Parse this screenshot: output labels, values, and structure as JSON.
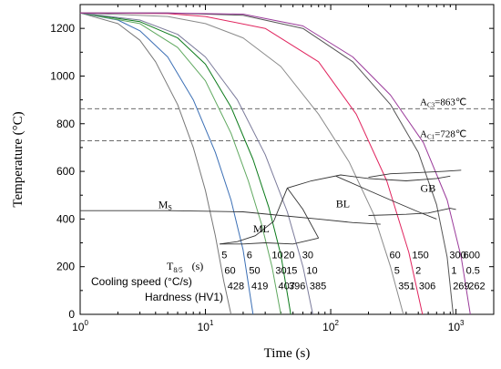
{
  "chart_data": {
    "type": "line",
    "x_scale": "log",
    "xlim": [
      1,
      2000
    ],
    "ylim": [
      0,
      1300
    ],
    "xlabel": "Time (s)",
    "ylabel": "Temperature (°C)",
    "x_ticks": [
      1,
      10,
      100,
      1000
    ],
    "x_tick_labels": [
      "10",
      "10",
      "10",
      "10"
    ],
    "x_tick_exponents": [
      "0",
      "1",
      "2",
      "3"
    ],
    "y_ticks": [
      0,
      200,
      400,
      600,
      800,
      1000,
      1200
    ],
    "y_tick_labels": [
      "0",
      "200",
      "400",
      "600",
      "800",
      "1000",
      "1200"
    ],
    "start_temperature": 1265,
    "cooling_curves": [
      {
        "color": "#777777",
        "t800_500": 5,
        "rate": 60,
        "hardness": 428,
        "x": [
          1,
          2,
          3,
          4,
          6,
          8,
          10,
          12,
          14,
          16
        ],
        "y": [
          1265,
          1220,
          1150,
          1060,
          880,
          700,
          520,
          330,
          140,
          0
        ]
      },
      {
        "color": "#3b6fb5",
        "t800_500": 6,
        "rate": 50,
        "hardness": 419,
        "x": [
          1,
          2,
          3,
          5,
          8,
          12,
          16,
          20,
          24
        ],
        "y": [
          1265,
          1235,
          1190,
          1080,
          900,
          680,
          480,
          270,
          0
        ]
      },
      {
        "color": "#5fa85f",
        "t800_500": 10,
        "rate": 30,
        "hardness": 407,
        "x": [
          1,
          3,
          6,
          10,
          16,
          22,
          28,
          34,
          40
        ],
        "y": [
          1265,
          1220,
          1120,
          980,
          760,
          560,
          380,
          200,
          0
        ]
      },
      {
        "color": "#0b7a1a",
        "t800_500": 20,
        "rate": 15,
        "hardness": 396,
        "x": [
          1,
          3,
          6,
          10,
          16,
          24,
          32,
          40,
          48
        ],
        "y": [
          1265,
          1228,
          1160,
          1050,
          870,
          650,
          450,
          250,
          0
        ]
      },
      {
        "color": "#7a7a9a",
        "t800_500": 30,
        "rate": 10,
        "hardness": 385,
        "x": [
          1,
          3,
          6,
          10,
          18,
          30,
          45,
          60,
          72
        ],
        "y": [
          1265,
          1235,
          1175,
          1080,
          900,
          670,
          430,
          200,
          0
        ]
      },
      {
        "color": "#8a8a8a",
        "t800_500": 60,
        "rate": 5,
        "hardness": 351,
        "x": [
          1,
          5,
          10,
          20,
          40,
          80,
          140,
          220,
          300,
          380
        ],
        "y": [
          1265,
          1250,
          1220,
          1160,
          1040,
          840,
          640,
          420,
          200,
          0
        ]
      },
      {
        "color": "#e0245e",
        "t800_500": 150,
        "rate": 2,
        "hardness": 306,
        "x": [
          1,
          5,
          10,
          30,
          80,
          160,
          280,
          420,
          540
        ],
        "y": [
          1265,
          1262,
          1250,
          1200,
          1060,
          840,
          560,
          260,
          0
        ]
      },
      {
        "color": "#555555",
        "t800_500": 300,
        "rate": 1,
        "hardness": 269,
        "x": [
          1,
          5,
          20,
          60,
          150,
          300,
          500,
          700,
          850,
          950
        ],
        "y": [
          1265,
          1265,
          1255,
          1200,
          1060,
          880,
          680,
          460,
          240,
          0
        ]
      },
      {
        "color": "#9a3a9a",
        "t800_500": 600,
        "rate": 0.5,
        "hardness": 262,
        "x": [
          1,
          5,
          20,
          60,
          150,
          300,
          550,
          850,
          1100,
          1300
        ],
        "y": [
          1265,
          1265,
          1260,
          1210,
          1080,
          920,
          720,
          480,
          240,
          0
        ]
      }
    ],
    "phase_boundaries": [
      {
        "x": [
          1,
          5,
          10,
          20,
          40,
          80,
          150,
          250
        ],
        "y": [
          435,
          435,
          433,
          430,
          415,
          400,
          385,
          378
        ]
      },
      {
        "x": [
          13,
          18,
          25,
          35,
          45,
          70,
          120,
          200,
          400,
          700,
          900
        ],
        "y": [
          295,
          305,
          330,
          390,
          530,
          560,
          585,
          570,
          560,
          570,
          580
        ]
      },
      {
        "x": [
          13,
          20,
          30,
          50,
          80
        ],
        "y": [
          295,
          295,
          300,
          295,
          320
        ]
      },
      {
        "x": [
          45,
          60,
          80
        ],
        "y": [
          530,
          440,
          320
        ]
      },
      {
        "x": [
          200,
          400,
          600,
          900,
          1000
        ],
        "y": [
          415,
          420,
          425,
          445,
          440
        ]
      },
      {
        "x": [
          110,
          200,
          300,
          500,
          700
        ],
        "y": [
          580,
          520,
          480,
          430,
          400
        ]
      },
      {
        "x": [
          200,
          300,
          500,
          800,
          1100
        ],
        "y": [
          575,
          590,
          595,
          600,
          605
        ]
      }
    ],
    "reference_lines": [
      {
        "y": 863,
        "label_main": "A",
        "label_sub": "C3",
        "label_value": "=863℃"
      },
      {
        "y": 728,
        "label_main": "A",
        "label_sub": "C1",
        "label_value": "=728℃"
      }
    ],
    "phase_labels": [
      {
        "main": "M",
        "sub": "S",
        "x": 4.2,
        "y": 445
      },
      {
        "main": "ML",
        "sub": "",
        "x": 24,
        "y": 345
      },
      {
        "main": "BL",
        "sub": "",
        "x": 110,
        "y": 450
      },
      {
        "main": "GB",
        "sub": "",
        "x": 520,
        "y": 515
      }
    ],
    "table_row_labels": {
      "t85_main": "T",
      "t85_sub": "8/5",
      "t85_unit": "(s)",
      "rate": "Cooling speed (°C/s)",
      "hardness": "Hardness (HV1)"
    },
    "table_row_y": [
      250,
      185,
      120
    ]
  }
}
